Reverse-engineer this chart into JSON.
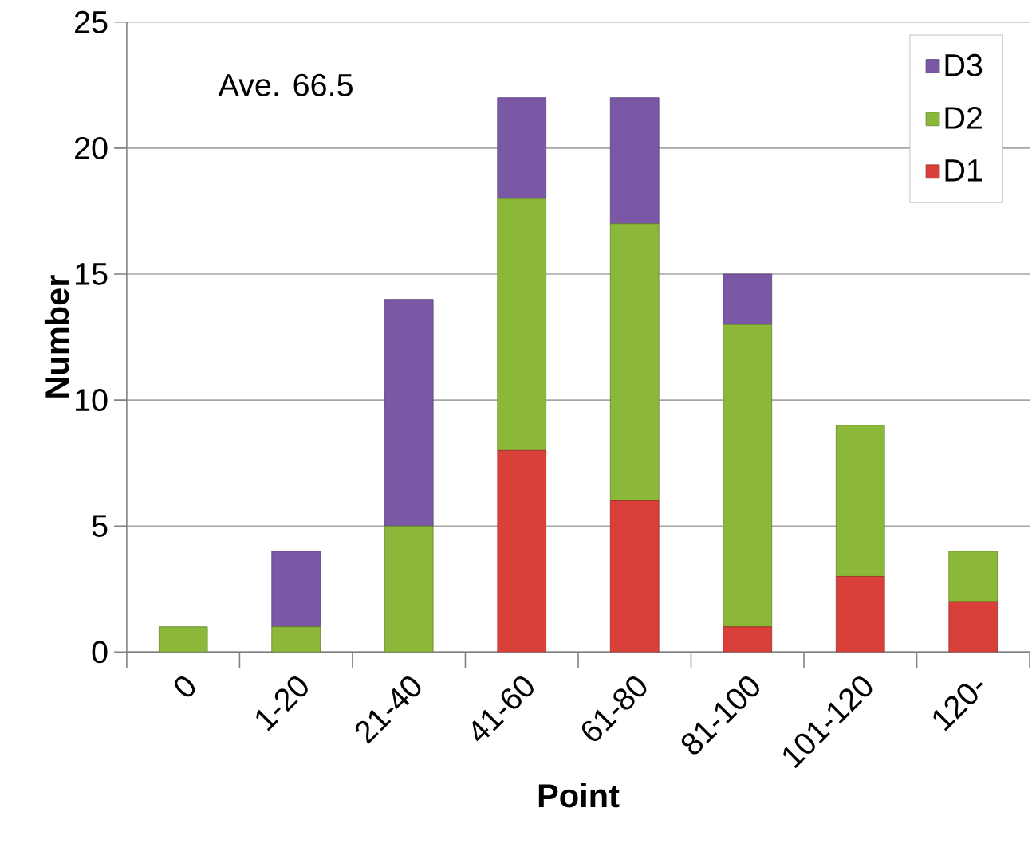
{
  "chart_data": {
    "type": "bar",
    "stacked": true,
    "xlabel": "Point",
    "ylabel": "Number",
    "categories": [
      "0",
      "1-20",
      "21-40",
      "41-60",
      "61-80",
      "81-100",
      "101-120",
      "120-"
    ],
    "series": [
      {
        "name": "D1",
        "color": "#d9403a",
        "values": [
          0,
          0,
          0,
          8,
          6,
          1,
          3,
          2
        ]
      },
      {
        "name": "D2",
        "color": "#8cb83a",
        "values": [
          1,
          1,
          5,
          10,
          11,
          12,
          6,
          2
        ]
      },
      {
        "name": "D3",
        "color": "#7b58a6",
        "values": [
          0,
          3,
          9,
          4,
          5,
          2,
          0,
          0
        ]
      }
    ],
    "ylim": [
      0,
      25
    ],
    "yticks": [
      0,
      5,
      10,
      15,
      20,
      25
    ],
    "grid": "y",
    "legend": "top right",
    "annotations": [
      "Ave. 66.5"
    ]
  }
}
